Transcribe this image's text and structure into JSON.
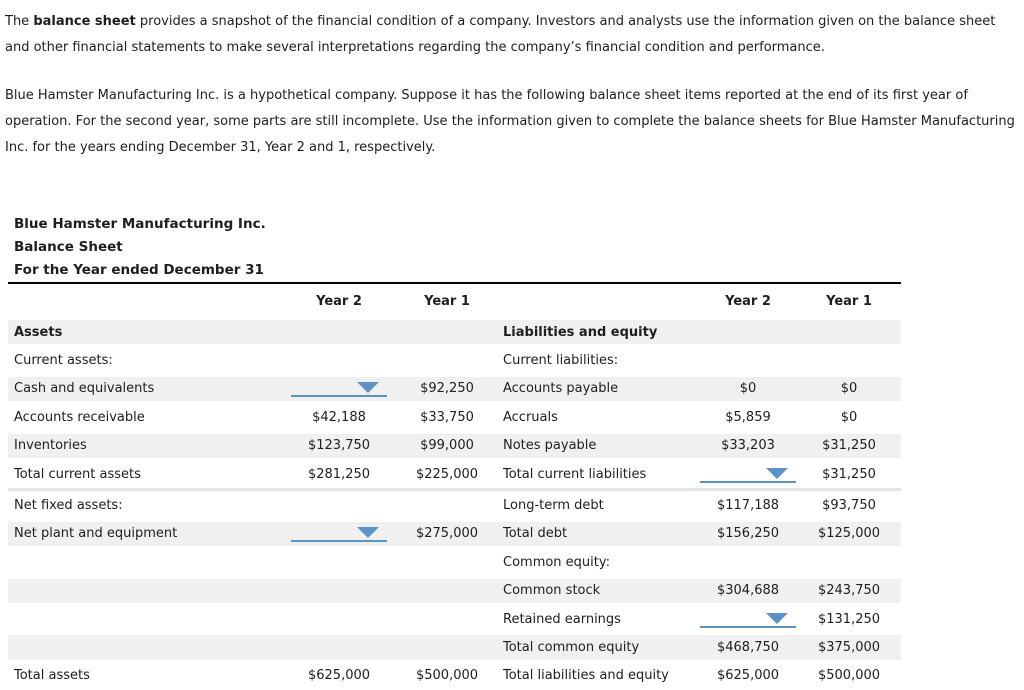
{
  "intro": {
    "p1_line1_pre": "The ",
    "p1_line1_bold": "balance sheet",
    "p1_line1_post": " provides a snapshot of the financial condition of a company. Investors and analysts use the information given on the balance sheet",
    "p1_line2": "and other financial statements to make several interpretations regarding the company’s financial condition and performance.",
    "p2_line1": "Blue Hamster Manufacturing Inc. is a hypothetical company. Suppose it has the following balance sheet items reported at the end of its first year of",
    "p2_line2": "operation. For the second year, some parts are still incomplete. Use the information given to complete the balance sheets for Blue Hamster Manufacturing",
    "p2_line3": "Inc. for the years ending December 31, Year 2 and 1, respectively."
  },
  "statement": {
    "company": "Blue Hamster Manufacturing Inc.",
    "title": "Balance Sheet",
    "period": "For the Year ended December 31",
    "col_headers": {
      "left_year2": "Year 2",
      "left_year1": "Year 1",
      "right_year2": "Year 2",
      "right_year1": "Year 1"
    },
    "colors": {
      "accent_blue": "#5b94c4",
      "shaded_row": "#f0f0f0",
      "divider": "#e4e4e4"
    },
    "rows": [
      {
        "shaded": true,
        "left": {
          "label": "Assets",
          "bold": true
        },
        "right": {
          "label": "Liabilities and equity",
          "bold": true
        }
      },
      {
        "shaded": false,
        "left": {
          "label": "Current assets:"
        },
        "right": {
          "label": "Current liabilities:"
        }
      },
      {
        "shaded": true,
        "left": {
          "label": "Cash and equivalents",
          "year2_dropdown": true,
          "year1": "$92,250"
        },
        "right": {
          "label": "Accounts payable",
          "year2": "$0",
          "year1": "$0"
        }
      },
      {
        "shaded": false,
        "left": {
          "label": "Accounts receivable",
          "year2": "$42,188",
          "year1": "$33,750"
        },
        "right": {
          "label": "Accruals",
          "year2": "$5,859",
          "year1": "$0"
        }
      },
      {
        "shaded": true,
        "left": {
          "label": "Inventories",
          "year2": "$123,750",
          "year1": "$99,000"
        },
        "right": {
          "label": "Notes payable",
          "year2": "$33,203",
          "year1": "$31,250"
        }
      },
      {
        "shaded": false,
        "left": {
          "label": "Total current assets",
          "year2": "$281,250",
          "year1": "$225,000"
        },
        "right": {
          "label": "Total current liabilities",
          "year2_dropdown": true,
          "year1": "$31,250"
        }
      },
      {
        "shaded": false,
        "divider_before": true,
        "left": {
          "label": "Net fixed assets:"
        },
        "right": {
          "label": "Long-term debt",
          "year2": "$117,188",
          "year1": "$93,750"
        }
      },
      {
        "shaded": true,
        "left": {
          "label": "Net plant and equipment",
          "year2_dropdown": true,
          "year1": "$275,000"
        },
        "right": {
          "label": "Total debt",
          "year2": "$156,250",
          "year1": "$125,000"
        }
      },
      {
        "shaded": false,
        "left": {},
        "right": {
          "label": "Common equity:"
        }
      },
      {
        "shaded": true,
        "left": {},
        "right": {
          "label": "Common stock",
          "year2": "$304,688",
          "year1": "$243,750"
        }
      },
      {
        "shaded": false,
        "left": {},
        "right": {
          "label": "Retained earnings",
          "year2_dropdown": true,
          "year1": "$131,250"
        }
      },
      {
        "shaded": true,
        "left": {},
        "right": {
          "label": "Total common equity",
          "year2": "$468,750",
          "year1": "$375,000"
        }
      },
      {
        "shaded": false,
        "left": {
          "label": "Total assets",
          "year2": "$625,000",
          "year1": "$500,000"
        },
        "right": {
          "label": "Total liabilities and equity",
          "year2": "$625,000",
          "year1": "$500,000"
        }
      }
    ]
  }
}
